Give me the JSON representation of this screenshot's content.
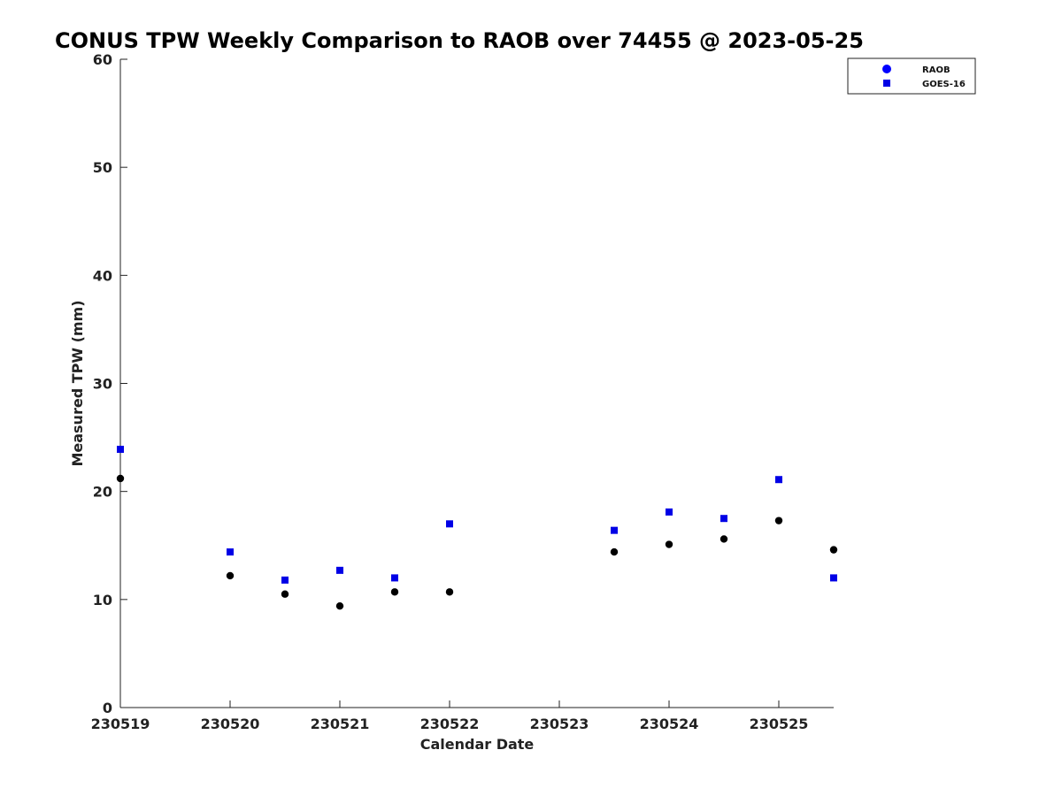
{
  "chart_data": {
    "type": "scatter",
    "title": "CONUS TPW Weekly Comparison to RAOB over 74455 @ 2023-05-25",
    "xlabel": "Calendar Date",
    "ylabel": "Measured TPW (mm)",
    "x_tick_labels": [
      "230519",
      "230520",
      "230521",
      "230522",
      "230523",
      "230524",
      "230525"
    ],
    "xlim": [
      0,
      6.5
    ],
    "ylim": [
      0,
      60
    ],
    "y_ticks": [
      0,
      10,
      20,
      30,
      40,
      50,
      60
    ],
    "grid": false,
    "legend_position": "top-right",
    "series": [
      {
        "name": "RAOB",
        "marker": "circle",
        "color": "#000000",
        "legend_color": "#0000ff",
        "points": [
          {
            "x": 0.0,
            "y": 21.2
          },
          {
            "x": 1.0,
            "y": 12.2
          },
          {
            "x": 1.5,
            "y": 10.5
          },
          {
            "x": 2.0,
            "y": 9.4
          },
          {
            "x": 2.5,
            "y": 10.7
          },
          {
            "x": 3.0,
            "y": 10.7
          },
          {
            "x": 4.5,
            "y": 14.4
          },
          {
            "x": 5.0,
            "y": 15.1
          },
          {
            "x": 5.5,
            "y": 15.6
          },
          {
            "x": 6.0,
            "y": 17.3
          },
          {
            "x": 6.5,
            "y": 14.6
          }
        ]
      },
      {
        "name": "GOES-16",
        "marker": "square",
        "color": "#0000e6",
        "legend_color": "#0000e6",
        "points": [
          {
            "x": 0.0,
            "y": 23.9
          },
          {
            "x": 1.0,
            "y": 14.4
          },
          {
            "x": 1.5,
            "y": 11.8
          },
          {
            "x": 2.0,
            "y": 12.7
          },
          {
            "x": 2.5,
            "y": 12.0
          },
          {
            "x": 3.0,
            "y": 17.0
          },
          {
            "x": 4.5,
            "y": 16.4
          },
          {
            "x": 5.0,
            "y": 18.1
          },
          {
            "x": 5.5,
            "y": 17.5
          },
          {
            "x": 6.0,
            "y": 21.1
          },
          {
            "x": 6.5,
            "y": 12.0
          }
        ]
      }
    ]
  }
}
